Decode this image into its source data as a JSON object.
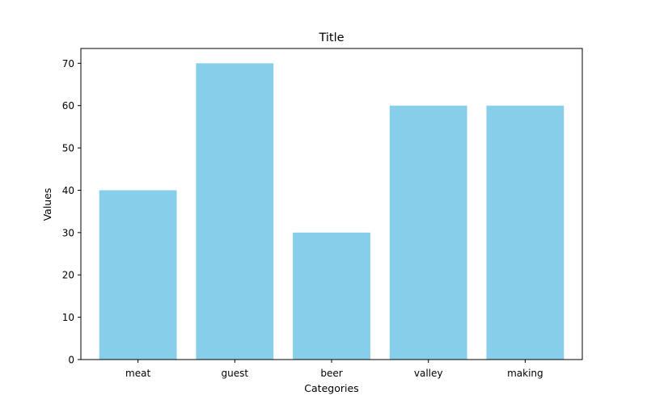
{
  "chart_data": {
    "type": "bar",
    "title": "Title",
    "xlabel": "Categories",
    "ylabel": "Values",
    "categories": [
      "meat",
      "guest",
      "beer",
      "valley",
      "making"
    ],
    "values": [
      40,
      70,
      30,
      60,
      60
    ],
    "ylim": [
      0,
      73.5
    ],
    "yticks": [
      0,
      10,
      20,
      30,
      40,
      50,
      60,
      70
    ],
    "bar_color": "#87CEEB",
    "grid": false,
    "legend": "none"
  }
}
